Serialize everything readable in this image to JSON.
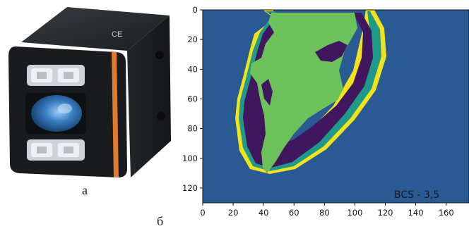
{
  "panels": {
    "left_label": "а",
    "right_label": "б"
  },
  "camera": {
    "body_color": "#1e1f22",
    "accent_stripe_color": "#e07a2c",
    "lens_color": "#3a7fc4",
    "mark_ce": "CE"
  },
  "chart_data": {
    "type": "heatmap",
    "title": "",
    "xlabel": "",
    "ylabel": "",
    "xlim": [
      0,
      175
    ],
    "ylim": [
      130,
      0
    ],
    "x_ticks": [
      "0",
      "20",
      "40",
      "60",
      "80",
      "100",
      "120",
      "140",
      "160"
    ],
    "y_ticks": [
      "0",
      "20",
      "40",
      "60",
      "80",
      "100",
      "120"
    ],
    "annotation": "BCS - 3,5",
    "colors": {
      "background": "#2a5a94",
      "yellow": "#f2e21e",
      "teal": "#1f9a8a",
      "purple": "#40175f",
      "green": "#6cc15a"
    }
  }
}
